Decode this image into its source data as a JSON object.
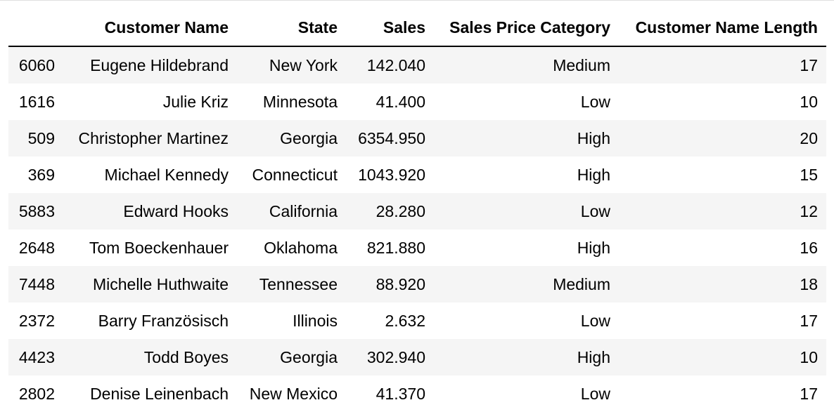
{
  "table": {
    "columns": [
      "",
      "Customer Name",
      "State",
      "Sales",
      "Sales Price Category",
      "Customer Name Length"
    ],
    "rows": [
      {
        "index": "6060",
        "customer_name": "Eugene Hildebrand",
        "state": "New York",
        "sales": "142.040",
        "category": "Medium",
        "name_length": "17"
      },
      {
        "index": "1616",
        "customer_name": "Julie Kriz",
        "state": "Minnesota",
        "sales": "41.400",
        "category": "Low",
        "name_length": "10"
      },
      {
        "index": "509",
        "customer_name": "Christopher Martinez",
        "state": "Georgia",
        "sales": "6354.950",
        "category": "High",
        "name_length": "20"
      },
      {
        "index": "369",
        "customer_name": "Michael Kennedy",
        "state": "Connecticut",
        "sales": "1043.920",
        "category": "High",
        "name_length": "15"
      },
      {
        "index": "5883",
        "customer_name": "Edward Hooks",
        "state": "California",
        "sales": "28.280",
        "category": "Low",
        "name_length": "12"
      },
      {
        "index": "2648",
        "customer_name": "Tom Boeckenhauer",
        "state": "Oklahoma",
        "sales": "821.880",
        "category": "High",
        "name_length": "16"
      },
      {
        "index": "7448",
        "customer_name": "Michelle Huthwaite",
        "state": "Tennessee",
        "sales": "88.920",
        "category": "Medium",
        "name_length": "18"
      },
      {
        "index": "2372",
        "customer_name": "Barry Französisch",
        "state": "Illinois",
        "sales": "2.632",
        "category": "Low",
        "name_length": "17"
      },
      {
        "index": "4423",
        "customer_name": "Todd Boyes",
        "state": "Georgia",
        "sales": "302.940",
        "category": "High",
        "name_length": "10"
      },
      {
        "index": "2802",
        "customer_name": "Denise Leinenbach",
        "state": "New Mexico",
        "sales": "41.370",
        "category": "Low",
        "name_length": "17"
      }
    ]
  },
  "colors": {
    "row_stripe": "#f5f5f5",
    "header_rule": "#000000",
    "text": "#000000"
  }
}
